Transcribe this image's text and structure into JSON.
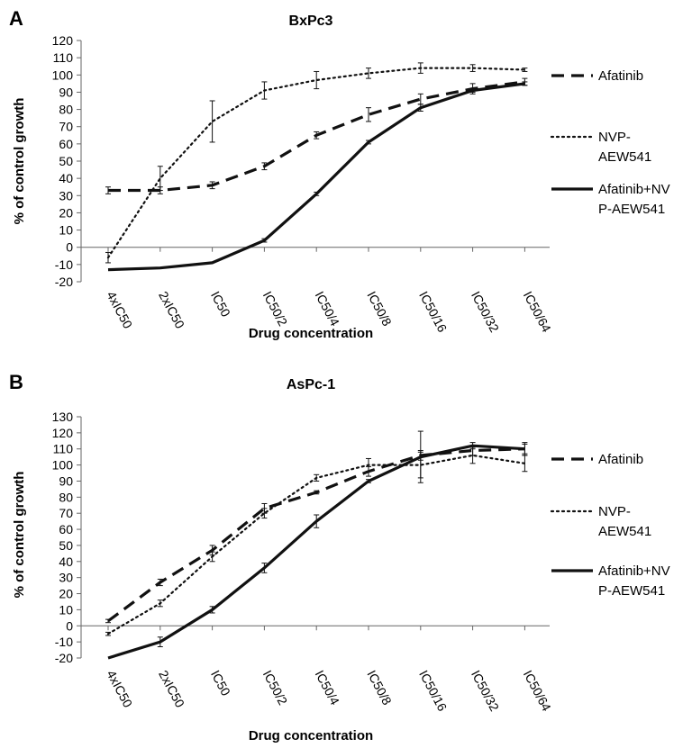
{
  "chart_data": [
    {
      "type": "line",
      "panel": "A",
      "title": "BxPc3",
      "xlabel": "Drug concentration",
      "ylabel": "% of control growth",
      "ylim": [
        -20,
        120
      ],
      "ytick_step": 10,
      "grid": false,
      "legend_position": "right",
      "categories": [
        "4xIC50",
        "2xIC50",
        "IC50",
        "IC50/2",
        "IC50/4",
        "IC50/8",
        "IC50/16",
        "IC50/32",
        "IC50/64"
      ],
      "series": [
        {
          "name": "Afatinib",
          "style": "dashed",
          "values": [
            33,
            33,
            36,
            47,
            65,
            77,
            86,
            92,
            96
          ],
          "errors": [
            2,
            2,
            2,
            2,
            2,
            4,
            3,
            3,
            2
          ]
        },
        {
          "name": "NVP-AEW541",
          "style": "dotted",
          "values": [
            -6,
            40,
            73,
            91,
            97,
            101,
            104,
            104,
            103
          ],
          "errors": [
            3,
            7,
            12,
            5,
            5,
            3,
            3,
            2,
            1
          ]
        },
        {
          "name": "Afatinib+NVP-AEW541",
          "style": "solid",
          "values": [
            -13,
            -12,
            -9,
            4,
            31,
            61,
            81,
            91,
            95
          ],
          "errors": [
            0,
            0,
            0,
            1,
            1,
            1,
            2,
            1,
            1
          ]
        }
      ]
    },
    {
      "type": "line",
      "panel": "B",
      "title": "AsPc-1",
      "xlabel": "Drug concentration",
      "ylabel": "% of control growth",
      "ylim": [
        -20,
        130
      ],
      "ytick_step": 10,
      "grid": false,
      "legend_position": "right",
      "categories": [
        "4xIC50",
        "2xIC50",
        "IC50",
        "IC50/2",
        "IC50/4",
        "IC50/8",
        "IC50/16",
        "IC50/32",
        "IC50/64"
      ],
      "series": [
        {
          "name": "Afatinib",
          "style": "dashed",
          "values": [
            3,
            27,
            47,
            73,
            83,
            96,
            106,
            109,
            110
          ],
          "errors": [
            1,
            2,
            3,
            3,
            1,
            3,
            3,
            3,
            3
          ]
        },
        {
          "name": "NVP-AEW541",
          "style": "dotted",
          "values": [
            -5,
            14,
            43,
            70,
            92,
            100,
            100,
            106,
            101
          ],
          "errors": [
            1,
            2,
            3,
            3,
            2,
            4,
            8,
            5,
            5
          ]
        },
        {
          "name": "Afatinib+NVP-AEW541",
          "style": "solid",
          "values": [
            -20,
            -10,
            10,
            36,
            65,
            90,
            105,
            112,
            110
          ],
          "errors": [
            0,
            3,
            2,
            3,
            4,
            1,
            16,
            2,
            4
          ]
        }
      ]
    }
  ]
}
